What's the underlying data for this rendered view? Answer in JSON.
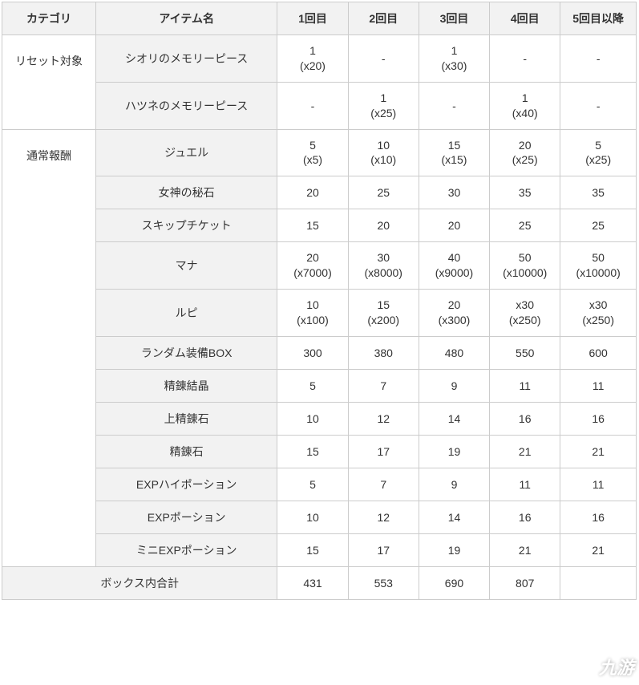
{
  "headers": {
    "category": "カテゴリ",
    "item": "アイテム名",
    "round1": "1回目",
    "round2": "2回目",
    "round3": "3回目",
    "round4": "4回目",
    "round5plus": "5回目以降"
  },
  "categories": {
    "reset": "リセット対象",
    "normal": "通常報酬"
  },
  "rows": [
    {
      "item": "シオリのメモリーピース",
      "v": [
        "1\n(x20)",
        "-",
        "1\n(x30)",
        "-",
        "-"
      ]
    },
    {
      "item": "ハツネのメモリーピース",
      "v": [
        "-",
        "1\n(x25)",
        "-",
        "1\n(x40)",
        "-"
      ]
    },
    {
      "item": "ジュエル",
      "v": [
        "5\n(x5)",
        "10\n(x10)",
        "15\n(x15)",
        "20\n(x25)",
        "5\n(x25)"
      ]
    },
    {
      "item": "女神の秘石",
      "v": [
        "20",
        "25",
        "30",
        "35",
        "35"
      ]
    },
    {
      "item": "スキップチケット",
      "v": [
        "15",
        "20",
        "20",
        "25",
        "25"
      ]
    },
    {
      "item": "マナ",
      "v": [
        "20\n(x7000)",
        "30\n(x8000)",
        "40\n(x9000)",
        "50\n(x10000)",
        "50\n(x10000)"
      ]
    },
    {
      "item": "ルピ",
      "v": [
        "10\n(x100)",
        "15\n(x200)",
        "20\n(x300)",
        "x30\n(x250)",
        "x30\n(x250)"
      ]
    },
    {
      "item": "ランダム装備BOX",
      "v": [
        "300",
        "380",
        "480",
        "550",
        "600"
      ]
    },
    {
      "item": "精錬結晶",
      "v": [
        "5",
        "7",
        "9",
        "11",
        "11"
      ]
    },
    {
      "item": "上精錬石",
      "v": [
        "10",
        "12",
        "14",
        "16",
        "16"
      ]
    },
    {
      "item": "精錬石",
      "v": [
        "15",
        "17",
        "19",
        "21",
        "21"
      ]
    },
    {
      "item": "EXPハイポーション",
      "v": [
        "5",
        "7",
        "9",
        "11",
        "11"
      ]
    },
    {
      "item": "EXPポーション",
      "v": [
        "10",
        "12",
        "14",
        "16",
        "16"
      ]
    },
    {
      "item": "ミニEXPポーション",
      "v": [
        "15",
        "17",
        "19",
        "21",
        "21"
      ]
    }
  ],
  "total": {
    "label": "ボックス内合計",
    "v": [
      "431",
      "553",
      "690",
      "807",
      ""
    ]
  },
  "watermark": "九游",
  "colors": {
    "border": "#cccccc",
    "header_bg": "#f2f2f2",
    "text": "#333333",
    "bg": "#ffffff"
  }
}
